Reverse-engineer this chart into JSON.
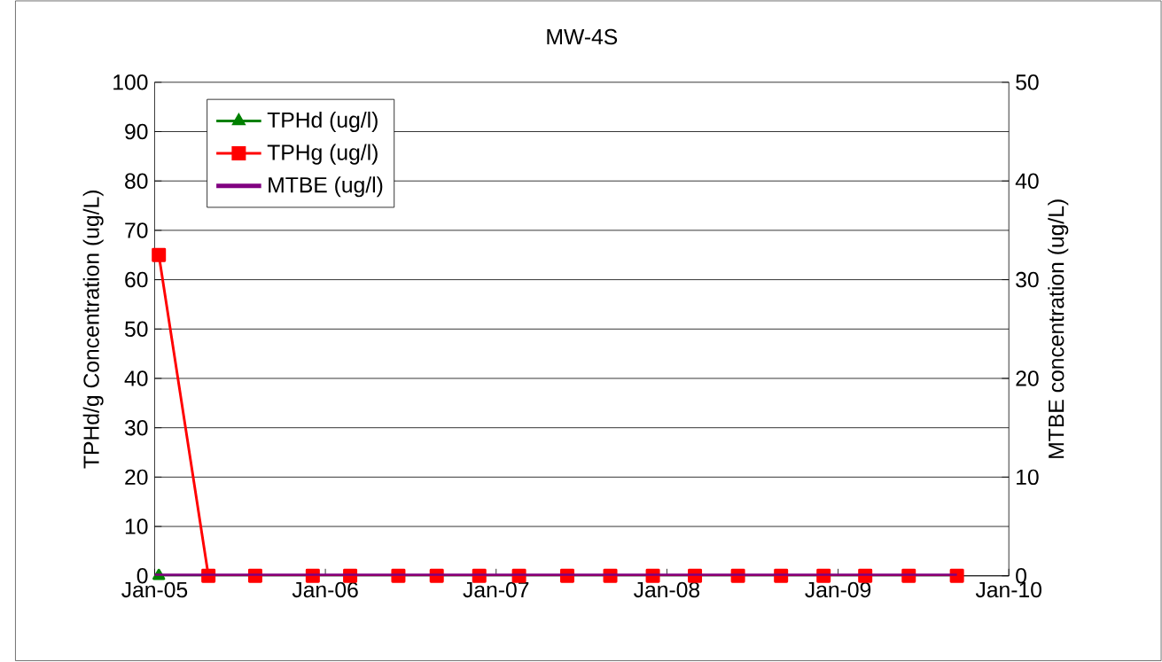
{
  "chart_data": {
    "type": "line",
    "title": "MW-4S",
    "ylabel": "TPHd/g Concentration (ug/L)",
    "y2label": "MTBE concentration (ug/L)",
    "xlim": [
      "2005-01-01",
      "2010-01-01"
    ],
    "xticks": [
      {
        "value": "2005-01-01",
        "label": "Jan-05"
      },
      {
        "value": "2006-01-01",
        "label": "Jan-06"
      },
      {
        "value": "2007-01-01",
        "label": "Jan-07"
      },
      {
        "value": "2008-01-01",
        "label": "Jan-08"
      },
      {
        "value": "2009-01-01",
        "label": "Jan-09"
      },
      {
        "value": "2010-01-01",
        "label": "Jan-10"
      }
    ],
    "ylim": [
      0,
      100
    ],
    "yticks": [
      0,
      10,
      20,
      30,
      40,
      50,
      60,
      70,
      80,
      90,
      100
    ],
    "y2lim": [
      0,
      50
    ],
    "y2ticks": [
      0,
      10,
      20,
      30,
      40,
      50
    ],
    "grid": "y",
    "legend": "top left",
    "line_style": "solid",
    "series": [
      {
        "name": "TPHd (ug/l)",
        "color": "#008000",
        "marker": "triangle",
        "x": [
          "2005-01-10"
        ],
        "values": [
          0
        ]
      },
      {
        "name": "TPHg (ug/l)",
        "color": "#ff0000",
        "marker": "square",
        "x": [
          "2005-01-10",
          "2005-04-26",
          "2005-08-04",
          "2005-12-05",
          "2006-02-23",
          "2006-06-06",
          "2006-08-27",
          "2006-11-26",
          "2007-02-19",
          "2007-06-02",
          "2007-09-02",
          "2007-12-02",
          "2008-03-01",
          "2008-06-01",
          "2008-09-01",
          "2008-12-01",
          "2009-02-28",
          "2009-06-01",
          "2009-09-12"
        ],
        "values": [
          65,
          0,
          0,
          0,
          0,
          0,
          0,
          0,
          0,
          0,
          0,
          0,
          0,
          0,
          0,
          0,
          0,
          0,
          0
        ]
      },
      {
        "name": "MTBE (ug/l)",
        "color": "#800080",
        "marker": "none",
        "axis": "y2",
        "x": [
          "2005-01-01",
          "2009-09-12"
        ],
        "values": [
          0,
          0
        ]
      }
    ]
  }
}
